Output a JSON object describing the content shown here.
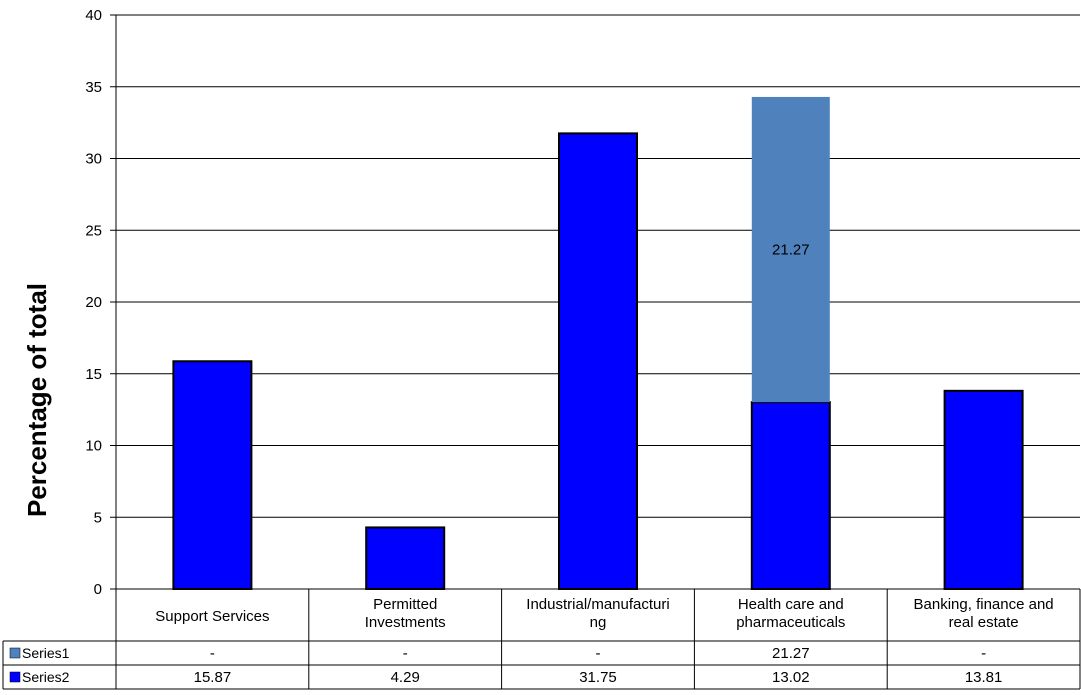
{
  "chart_data": {
    "type": "bar",
    "stacked": true,
    "ylabel": "Percentage of total",
    "ylim": [
      0,
      40
    ],
    "yticks": [
      0,
      5,
      10,
      15,
      20,
      25,
      30,
      35,
      40
    ],
    "grid": true,
    "categories": [
      [
        "Support Services"
      ],
      [
        "Permitted",
        "Investments"
      ],
      [
        "Industrial/manufacturi",
        "ng"
      ],
      [
        "Health care and",
        "pharmaceuticals"
      ],
      [
        "Banking, finance and",
        "real estate"
      ]
    ],
    "series": [
      {
        "name": "Series2",
        "color": "#0000ff",
        "values": [
          15.87,
          4.29,
          31.75,
          13.02,
          13.81
        ],
        "labels": [
          "15.87",
          "4.29",
          "31.75",
          "13.02",
          "13.81"
        ]
      },
      {
        "name": "Series1",
        "color": "#4f81bd",
        "values": [
          null,
          null,
          null,
          21.27,
          null
        ],
        "labels": [
          "-",
          "-",
          "-",
          "21.27",
          "-"
        ]
      }
    ],
    "data_labels": [
      {
        "series": "Series1",
        "category": 3,
        "text": "21.27"
      }
    ],
    "table_rows": [
      "Series1",
      "Series2"
    ]
  }
}
